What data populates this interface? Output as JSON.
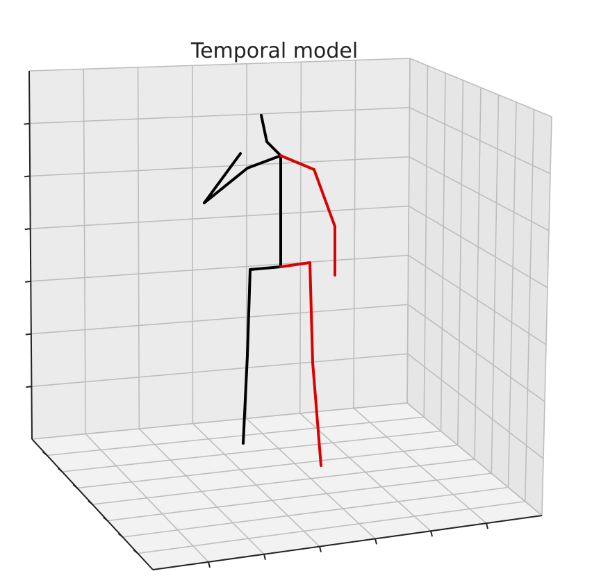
{
  "title": "Temporal model",
  "colors": {
    "background": "#ffffff",
    "pane_back": "#ebebeb",
    "pane_side": "#e6e6e6",
    "pane_floor": "#f2f2f2",
    "grid": "#bdbdbd",
    "axis": "#222222",
    "left_side": "#000000",
    "right_side": "#dd0000"
  },
  "skeleton": {
    "joints": [
      "head",
      "neck",
      "shoulder-left",
      "elbow-left",
      "wrist-left",
      "shoulder-right",
      "elbow-right",
      "wrist-right",
      "pelvis",
      "hip-left",
      "knee-left",
      "foot-left",
      "hip-right",
      "knee-right",
      "foot-right"
    ],
    "bones": [
      {
        "name": "head-neck",
        "side": "left"
      },
      {
        "name": "neck-shoulder-left",
        "side": "left"
      },
      {
        "name": "upper-arm-left",
        "side": "left"
      },
      {
        "name": "forearm-left",
        "side": "left"
      },
      {
        "name": "spine",
        "side": "left"
      },
      {
        "name": "pelvis-hip-left",
        "side": "left"
      },
      {
        "name": "thigh-left",
        "side": "left"
      },
      {
        "name": "shin-left",
        "side": "left"
      },
      {
        "name": "neck-shoulder-right",
        "side": "right"
      },
      {
        "name": "upper-arm-right",
        "side": "right"
      },
      {
        "name": "forearm-right",
        "side": "right"
      },
      {
        "name": "pelvis-hip-right",
        "side": "right"
      },
      {
        "name": "thigh-right",
        "side": "right"
      },
      {
        "name": "shin-right",
        "side": "right"
      }
    ]
  }
}
